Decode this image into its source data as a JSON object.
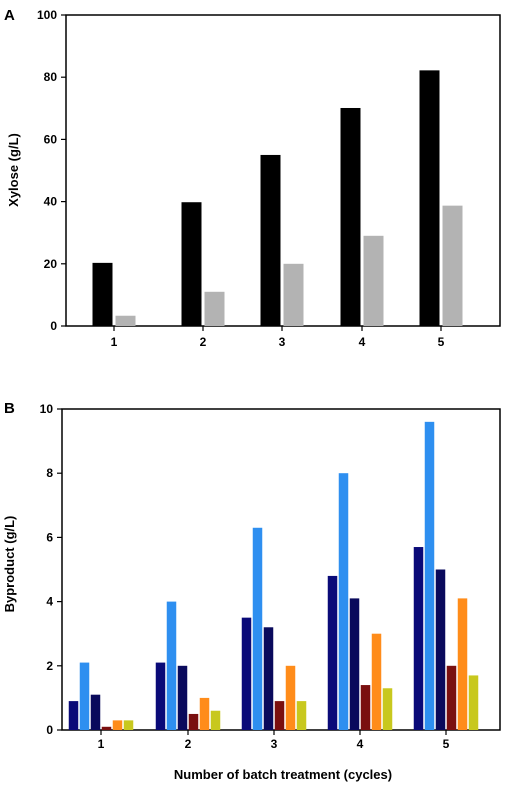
{
  "chart_data": [
    {
      "panel": "A",
      "type": "bar",
      "categories": [
        "1",
        "2",
        "3",
        "4",
        "5"
      ],
      "series": [
        {
          "values": [
            20.3,
            39.8,
            55.0,
            70.1,
            82.2
          ],
          "color": "#000000"
        },
        {
          "values": [
            3.3,
            11.0,
            20.0,
            29.0,
            38.7
          ],
          "color": "#b3b3b3"
        }
      ],
      "xlabel": "",
      "ylabel": "Xylose (g/L)",
      "ylim": [
        0,
        100
      ],
      "yticks": [
        0,
        20,
        40,
        60,
        80,
        100
      ],
      "grid": false,
      "legend": "none"
    },
    {
      "panel": "B",
      "type": "bar",
      "categories": [
        "1",
        "2",
        "3",
        "4",
        "5"
      ],
      "series": [
        {
          "values": [
            0.9,
            2.1,
            3.5,
            4.8,
            5.7
          ],
          "color": "#0a0a78"
        },
        {
          "values": [
            2.1,
            4.0,
            6.3,
            8.0,
            9.6
          ],
          "color": "#2e8ff0"
        },
        {
          "values": [
            1.1,
            2.0,
            3.2,
            4.1,
            5.0
          ],
          "color": "#0a0a5c"
        },
        {
          "values": [
            0.1,
            0.5,
            0.9,
            1.4,
            2.0
          ],
          "color": "#7a0f0f"
        },
        {
          "values": [
            0.3,
            1.0,
            2.0,
            3.0,
            4.1
          ],
          "color": "#ff8c1a"
        },
        {
          "values": [
            0.3,
            0.6,
            0.9,
            1.3,
            1.7
          ],
          "color": "#c8c81e"
        }
      ],
      "xlabel": "Number of batch treatment (cycles)",
      "ylabel": "Byproduct (g/L)",
      "ylim": [
        0,
        10
      ],
      "yticks": [
        0,
        2,
        4,
        6,
        8,
        10
      ],
      "grid": false,
      "legend": "none"
    }
  ]
}
